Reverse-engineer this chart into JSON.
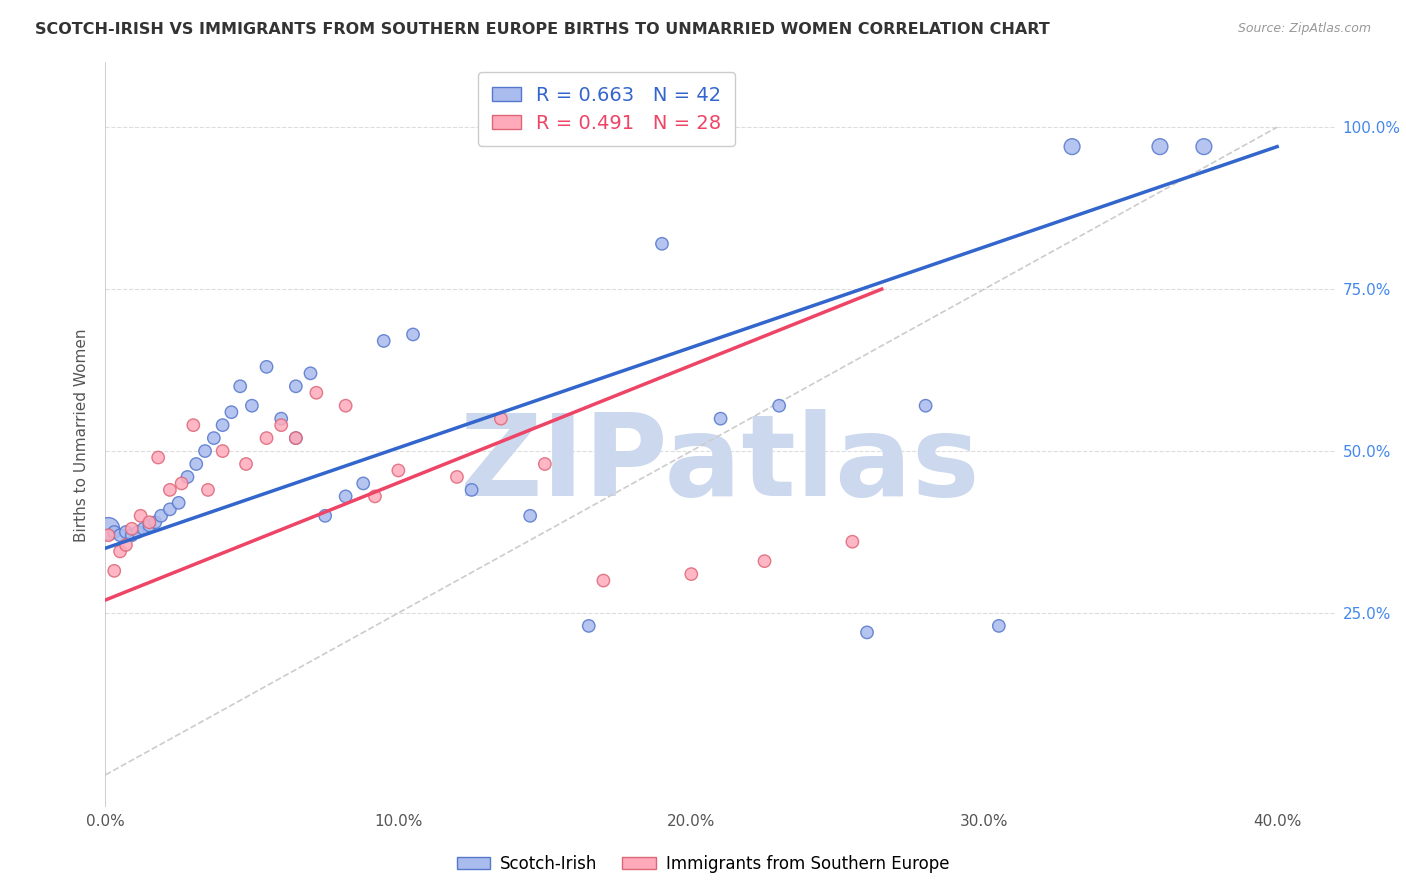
{
  "title": "SCOTCH-IRISH VS IMMIGRANTS FROM SOUTHERN EUROPE BIRTHS TO UNMARRIED WOMEN CORRELATION CHART",
  "source": "Source: ZipAtlas.com",
  "ylabel": "Births to Unmarried Women",
  "xlim": [
    0.0,
    0.42
  ],
  "ylim": [
    -0.05,
    1.1
  ],
  "xticks": [
    0.0,
    0.05,
    0.1,
    0.15,
    0.2,
    0.25,
    0.3,
    0.35,
    0.4
  ],
  "xticklabels": [
    "0.0%",
    "",
    "10.0%",
    "",
    "20.0%",
    "",
    "30.0%",
    "",
    "40.0%"
  ],
  "yticks_right": [
    0.25,
    0.5,
    0.75,
    1.0
  ],
  "yticklabels_right": [
    "25.0%",
    "50.0%",
    "75.0%",
    "100.0%"
  ],
  "blue_R": "0.663",
  "blue_N": "42",
  "pink_R": "0.491",
  "pink_N": "28",
  "blue_fill": "#aabbee",
  "pink_fill": "#ffaabb",
  "blue_edge": "#5577cc",
  "pink_edge": "#dd6677",
  "blue_line": "#3366cc",
  "pink_line": "#ee4466",
  "ref_line_color": "#cccccc",
  "watermark_color": "#ccd8ee",
  "legend_label_blue": "Scotch-Irish",
  "legend_label_pink": "Immigrants from Southern Europe",
  "blue_x": [
    0.001,
    0.003,
    0.005,
    0.007,
    0.009,
    0.011,
    0.013,
    0.015,
    0.017,
    0.019,
    0.022,
    0.025,
    0.028,
    0.031,
    0.034,
    0.037,
    0.04,
    0.043,
    0.046,
    0.05,
    0.055,
    0.06,
    0.065,
    0.065,
    0.07,
    0.075,
    0.082,
    0.088,
    0.095,
    0.105,
    0.125,
    0.145,
    0.165,
    0.19,
    0.21,
    0.23,
    0.26,
    0.28,
    0.305,
    0.33,
    0.36,
    0.375
  ],
  "blue_y": [
    0.38,
    0.375,
    0.37,
    0.375,
    0.37,
    0.375,
    0.38,
    0.385,
    0.39,
    0.4,
    0.41,
    0.42,
    0.46,
    0.48,
    0.5,
    0.52,
    0.54,
    0.56,
    0.6,
    0.57,
    0.63,
    0.55,
    0.6,
    0.52,
    0.62,
    0.4,
    0.43,
    0.45,
    0.67,
    0.68,
    0.44,
    0.4,
    0.23,
    0.82,
    0.55,
    0.57,
    0.22,
    0.57,
    0.23,
    0.97,
    0.97,
    0.97
  ],
  "blue_s": [
    260,
    80,
    80,
    80,
    80,
    80,
    80,
    80,
    80,
    80,
    80,
    80,
    80,
    80,
    80,
    80,
    80,
    80,
    80,
    80,
    80,
    80,
    80,
    80,
    80,
    80,
    80,
    80,
    80,
    80,
    80,
    80,
    80,
    80,
    80,
    80,
    80,
    80,
    80,
    130,
    130,
    130
  ],
  "pink_x": [
    0.001,
    0.003,
    0.005,
    0.007,
    0.009,
    0.012,
    0.015,
    0.018,
    0.022,
    0.026,
    0.03,
    0.035,
    0.04,
    0.048,
    0.055,
    0.06,
    0.065,
    0.072,
    0.082,
    0.092,
    0.1,
    0.12,
    0.135,
    0.15,
    0.17,
    0.2,
    0.225,
    0.255
  ],
  "pink_y": [
    0.37,
    0.315,
    0.345,
    0.355,
    0.38,
    0.4,
    0.39,
    0.49,
    0.44,
    0.45,
    0.54,
    0.44,
    0.5,
    0.48,
    0.52,
    0.54,
    0.52,
    0.59,
    0.57,
    0.43,
    0.47,
    0.46,
    0.55,
    0.48,
    0.3,
    0.31,
    0.33,
    0.36
  ],
  "pink_s": [
    80,
    80,
    80,
    80,
    80,
    80,
    80,
    80,
    80,
    80,
    80,
    80,
    80,
    80,
    80,
    80,
    80,
    80,
    80,
    80,
    80,
    80,
    80,
    80,
    80,
    80,
    80,
    80
  ]
}
